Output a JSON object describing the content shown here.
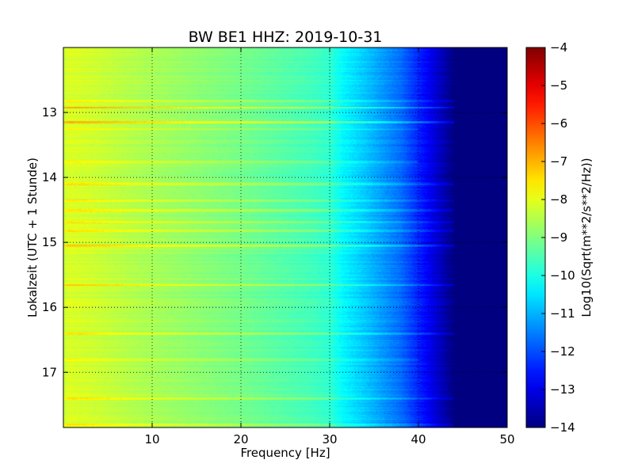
{
  "chart_data": {
    "type": "heatmap",
    "title": "BW BE1 HHZ: 2019-10-31",
    "xlabel": "Frequency [Hz]",
    "ylabel": "Lokalzeit (UTC + 1 Stunde)",
    "colorbar_label": "Log10(Sqrt(m**2/s**2/Hz))",
    "xlim": [
      0,
      50
    ],
    "ylim": [
      17.85,
      12.0
    ],
    "x_ticks": [
      10,
      20,
      30,
      40,
      50
    ],
    "y_ticks": [
      13,
      14,
      15,
      16,
      17
    ],
    "color_range": [
      -14,
      -4
    ],
    "color_ticks": [
      -4,
      -5,
      -6,
      -7,
      -8,
      -9,
      -10,
      -11,
      -12,
      -13,
      -14
    ],
    "colormap": "jet",
    "grid": true,
    "spectral_profile": [
      {
        "freq": 0,
        "value": -8.3
      },
      {
        "freq": 0.5,
        "value": -8.1
      },
      {
        "freq": 3,
        "value": -8.2
      },
      {
        "freq": 8,
        "value": -8.5
      },
      {
        "freq": 12,
        "value": -8.7
      },
      {
        "freq": 20,
        "value": -9.1
      },
      {
        "freq": 28,
        "value": -9.6
      },
      {
        "freq": 30,
        "value": -9.8
      },
      {
        "freq": 31.5,
        "value": -10.3
      },
      {
        "freq": 34,
        "value": -10.8
      },
      {
        "freq": 38,
        "value": -11.7
      },
      {
        "freq": 41,
        "value": -12.8
      },
      {
        "freq": 43,
        "value": -13.6
      },
      {
        "freq": 44,
        "value": -14.0
      },
      {
        "freq": 50,
        "value": -14.0
      }
    ],
    "bright_lines": [
      {
        "time": 12.82,
        "boost": 0.5,
        "fmax": 45
      },
      {
        "time": 12.92,
        "boost": 1.2,
        "fmax": 45
      },
      {
        "time": 13.15,
        "boost": 1.0,
        "fmax": 45
      },
      {
        "time": 13.25,
        "boost": 0.4,
        "fmax": 40
      },
      {
        "time": 13.75,
        "boost": 0.5,
        "fmax": 40
      },
      {
        "time": 14.1,
        "boost": 0.7,
        "fmax": 45
      },
      {
        "time": 14.35,
        "boost": 0.6,
        "fmax": 44
      },
      {
        "time": 14.5,
        "boost": 0.6,
        "fmax": 44
      },
      {
        "time": 14.68,
        "boost": 0.6,
        "fmax": 45
      },
      {
        "time": 14.82,
        "boost": 0.6,
        "fmax": 44
      },
      {
        "time": 15.05,
        "boost": 0.8,
        "fmax": 44
      },
      {
        "time": 15.65,
        "boost": 0.8,
        "fmax": 45
      },
      {
        "time": 16.4,
        "boost": 0.6,
        "fmax": 44
      },
      {
        "time": 16.8,
        "boost": 0.5,
        "fmax": 40
      },
      {
        "time": 17.4,
        "boost": 0.6,
        "fmax": 44
      },
      {
        "time": 17.8,
        "boost": 0.7,
        "fmax": 45
      }
    ]
  }
}
